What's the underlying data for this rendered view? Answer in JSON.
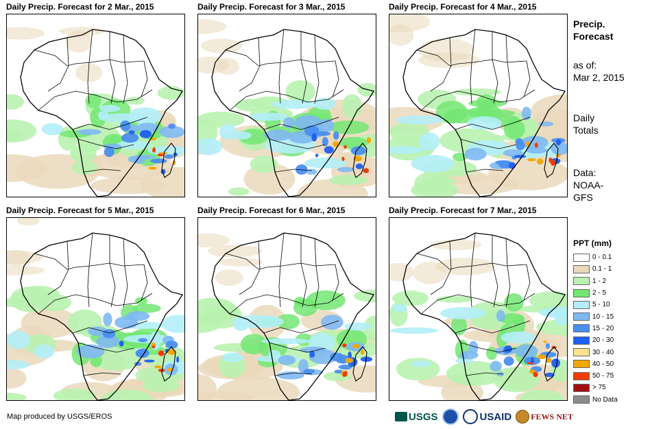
{
  "panels": [
    {
      "title": "Daily Precip. Forecast for 2 Mar., 2015"
    },
    {
      "title": "Daily Precip. Forecast for 3 Mar., 2015"
    },
    {
      "title": "Daily Precip. Forecast for 4 Mar., 2015"
    },
    {
      "title": "Daily Precip. Forecast for 5 Mar., 2015"
    },
    {
      "title": "Daily Precip. Forecast for 6 Mar., 2015"
    },
    {
      "title": "Daily Precip. Forecast for 7 Mar., 2015"
    }
  ],
  "sidebar": {
    "title_line1": "Precip.",
    "title_line2": "Forecast",
    "asof_line1": "as of:",
    "asof_line2": "Mar 2, 2015",
    "totals_line1": "Daily",
    "totals_line2": "Totals",
    "data_line1": "Data:",
    "data_line2": "NOAA-",
    "data_line3": "GFS"
  },
  "legend": {
    "title": "PPT (mm)",
    "items": [
      {
        "label": "0 - 0.1",
        "color": "#ffffff"
      },
      {
        "label": "0.1 - 1",
        "color": "#ead9bb"
      },
      {
        "label": "1 - 2",
        "color": "#b9f2b0"
      },
      {
        "label": "2 - 5",
        "color": "#73e673"
      },
      {
        "label": "5 - 10",
        "color": "#b3eef7"
      },
      {
        "label": "10 - 15",
        "color": "#80b8f2"
      },
      {
        "label": "15 - 20",
        "color": "#4a8ef0"
      },
      {
        "label": "20 - 30",
        "color": "#1f5ff0"
      },
      {
        "label": "30 - 40",
        "color": "#fae38c"
      },
      {
        "label": "40 - 50",
        "color": "#f5a800"
      },
      {
        "label": "50 - 75",
        "color": "#f03c00"
      },
      {
        "label": "> 75",
        "color": "#a01010"
      },
      {
        "label": "No Data",
        "color": "#8c8c8c"
      }
    ]
  },
  "credit": "Map produced by USGS/EROS",
  "logos": {
    "usgs": "USGS",
    "usaid": "USAID",
    "fews": "FEWS NET"
  }
}
